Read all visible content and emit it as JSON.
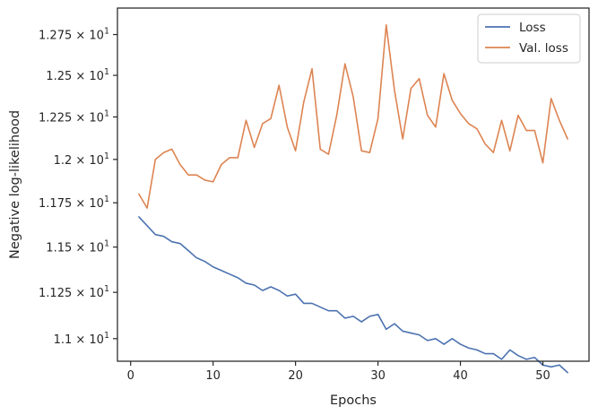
{
  "chart_data": {
    "type": "line",
    "title": "",
    "xlabel": "Epochs",
    "ylabel": "Negative log-likelihood",
    "y_scale": "log",
    "xlim": [
      -1.6,
      55.6
    ],
    "ylim": [
      10.88,
      12.915
    ],
    "xticks": [
      {
        "value": 0,
        "label": "0"
      },
      {
        "value": 10,
        "label": "10"
      },
      {
        "value": 20,
        "label": "20"
      },
      {
        "value": 30,
        "label": "30"
      },
      {
        "value": 40,
        "label": "40"
      },
      {
        "value": 50,
        "label": "50"
      }
    ],
    "yticks": [
      {
        "value": 11.0,
        "mantissa": "1.1",
        "base": "10",
        "exp": "1"
      },
      {
        "value": 11.25,
        "mantissa": "1.125",
        "base": "10",
        "exp": "1"
      },
      {
        "value": 11.5,
        "mantissa": "1.15",
        "base": "10",
        "exp": "1"
      },
      {
        "value": 11.75,
        "mantissa": "1.175",
        "base": "10",
        "exp": "1"
      },
      {
        "value": 12.0,
        "mantissa": "1.2",
        "base": "10",
        "exp": "1"
      },
      {
        "value": 12.25,
        "mantissa": "1.225",
        "base": "10",
        "exp": "1"
      },
      {
        "value": 12.5,
        "mantissa": "1.25",
        "base": "10",
        "exp": "1"
      },
      {
        "value": 12.75,
        "mantissa": "1.275",
        "base": "10",
        "exp": "1"
      }
    ],
    "grid": false,
    "legend_position": "top-right",
    "x": [
      1,
      2,
      3,
      4,
      5,
      6,
      7,
      8,
      9,
      10,
      11,
      12,
      13,
      14,
      15,
      16,
      17,
      18,
      19,
      20,
      21,
      22,
      23,
      24,
      25,
      26,
      27,
      28,
      29,
      30,
      31,
      32,
      33,
      34,
      35,
      36,
      37,
      38,
      39,
      40,
      41,
      42,
      43,
      44,
      45,
      46,
      47,
      48,
      49,
      50,
      51,
      52,
      53
    ],
    "series": [
      {
        "name": "Loss",
        "color": "#4c72b0",
        "values": [
          11.67,
          11.62,
          11.57,
          11.56,
          11.53,
          11.52,
          11.48,
          11.44,
          11.42,
          11.39,
          11.37,
          11.35,
          11.33,
          11.3,
          11.29,
          11.26,
          11.28,
          11.26,
          11.23,
          11.24,
          11.19,
          11.19,
          11.17,
          11.15,
          11.15,
          11.11,
          11.12,
          11.09,
          11.12,
          11.13,
          11.05,
          11.08,
          11.04,
          11.03,
          11.02,
          10.99,
          11.0,
          10.97,
          11.0,
          10.97,
          10.95,
          10.94,
          10.92,
          10.92,
          10.89,
          10.94,
          10.91,
          10.89,
          10.9,
          10.86,
          10.85,
          10.86,
          10.82
        ]
      },
      {
        "name": "Val. loss",
        "color": "#dd8452",
        "values": [
          11.8,
          11.72,
          12.0,
          12.04,
          12.06,
          11.97,
          11.91,
          11.91,
          11.88,
          11.87,
          11.97,
          12.01,
          12.01,
          12.23,
          12.07,
          12.21,
          12.24,
          12.44,
          12.19,
          12.05,
          12.34,
          12.54,
          12.06,
          12.03,
          12.26,
          12.57,
          12.37,
          12.05,
          12.04,
          12.24,
          12.81,
          12.41,
          12.12,
          12.42,
          12.48,
          12.26,
          12.19,
          12.51,
          12.35,
          12.27,
          12.21,
          12.18,
          12.09,
          12.04,
          12.23,
          12.05,
          12.26,
          12.17,
          12.17,
          11.98,
          12.36,
          12.23,
          12.12
        ]
      }
    ]
  }
}
